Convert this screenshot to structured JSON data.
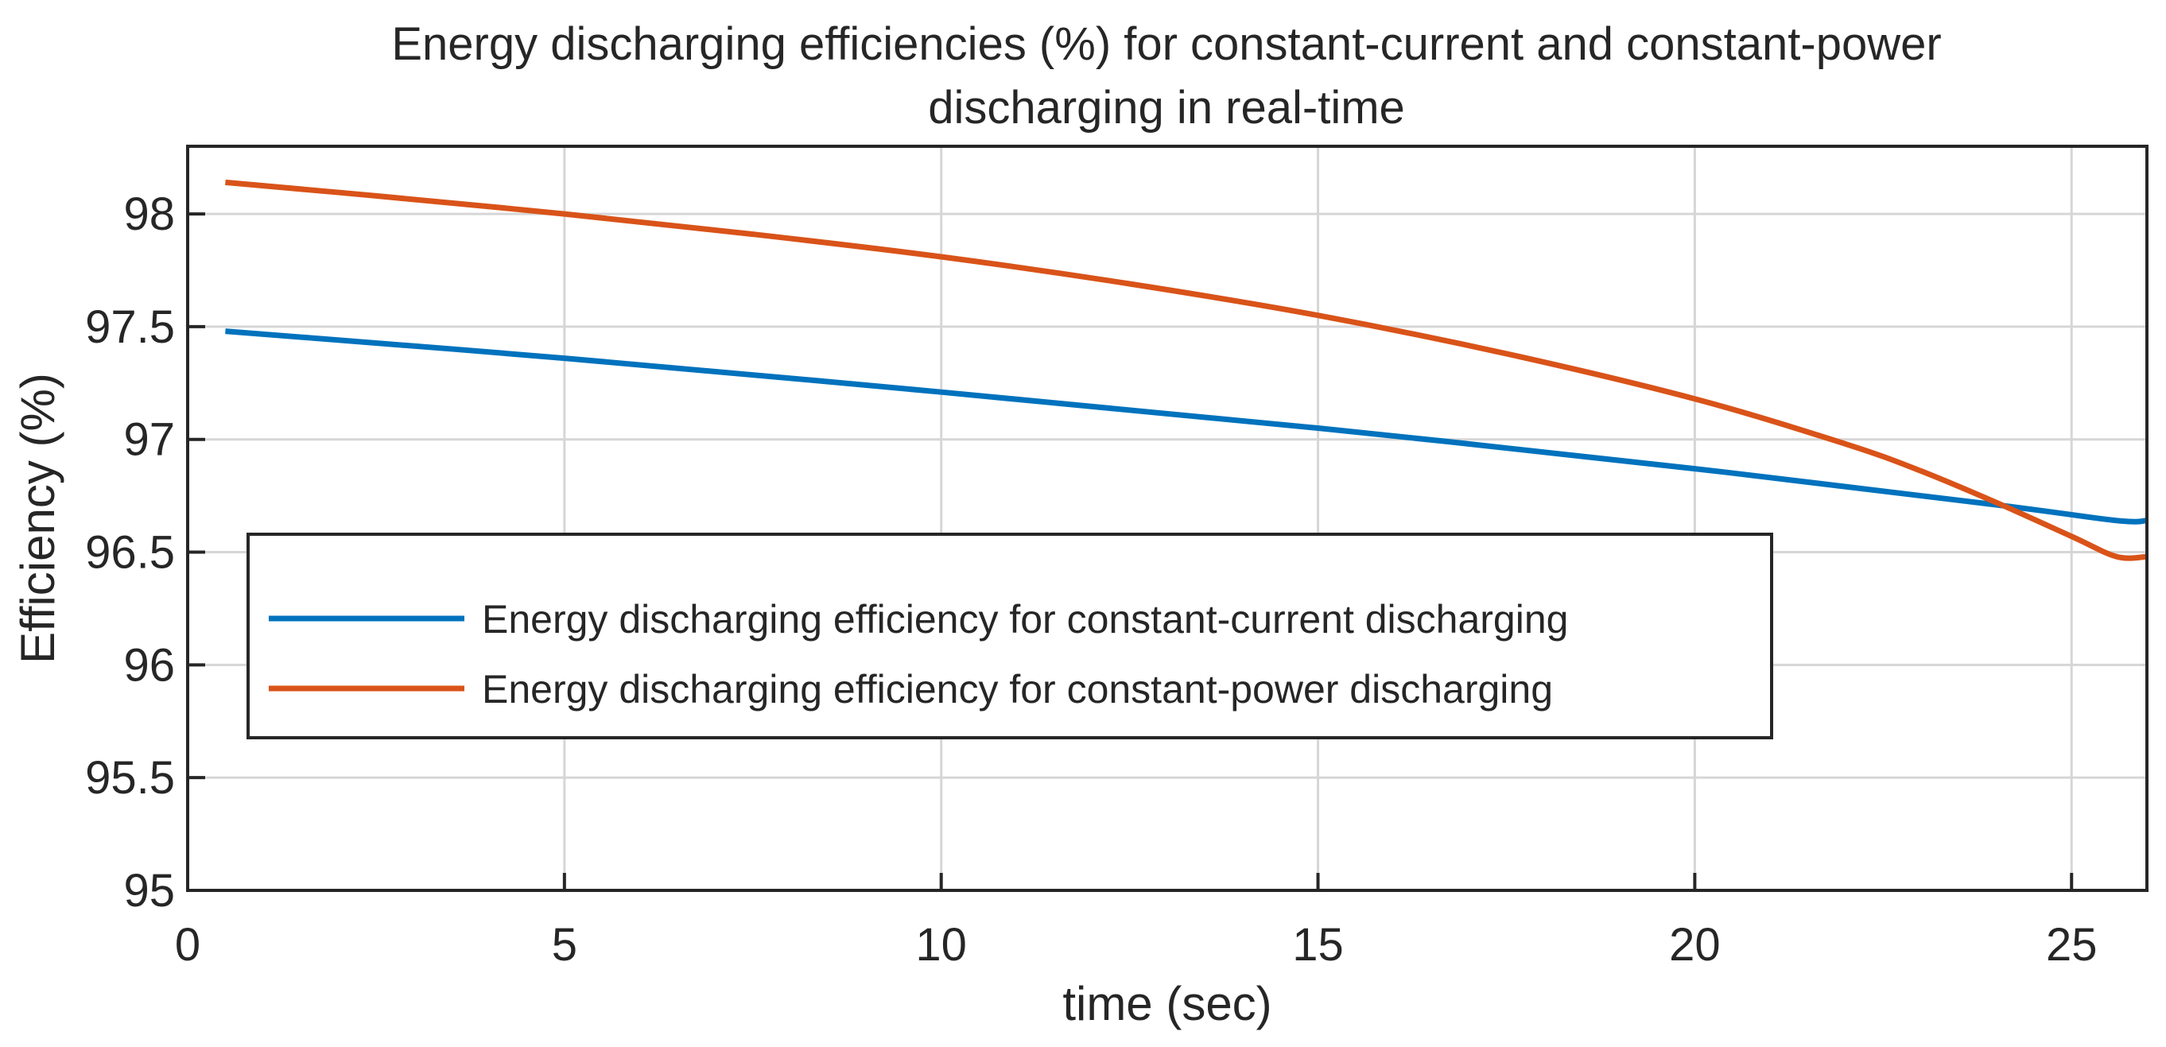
{
  "chart_data": {
    "type": "line",
    "title": [
      "Energy discharging efficiencies (%) for constant-current and constant-power",
      "discharging in real-time"
    ],
    "xlabel": "time (sec)",
    "ylabel": "Efficiency (%)",
    "xlim": [
      0,
      26
    ],
    "ylim": [
      95,
      98.3
    ],
    "xticks": [
      0,
      5,
      10,
      15,
      20,
      25
    ],
    "yticks": [
      95,
      95.5,
      96,
      96.5,
      97,
      97.5,
      98
    ],
    "xtick_labels": [
      "0",
      "5",
      "10",
      "15",
      "20",
      "25"
    ],
    "ytick_labels": [
      "95",
      "95.5",
      "96",
      "96.5",
      "97",
      "97.5",
      "98"
    ],
    "grid": true,
    "legend_position": "lower-left",
    "series": [
      {
        "name": "Energy discharging efficiency for constant-current discharging",
        "color": "#0072BD",
        "x": [
          0.5,
          5,
          10,
          15,
          20,
          24,
          25.6,
          26
        ],
        "y": [
          97.48,
          97.36,
          97.21,
          97.05,
          96.87,
          96.71,
          96.64,
          96.64
        ]
      },
      {
        "name": "Energy discharging efficiency for constant-power discharging",
        "color": "#D95319",
        "x": [
          0.5,
          2.5,
          5,
          7.5,
          10,
          12.5,
          15,
          17.5,
          20,
          22,
          23,
          24,
          25,
          25.6,
          26
        ],
        "y": [
          98.14,
          98.08,
          98.0,
          97.91,
          97.81,
          97.69,
          97.55,
          97.38,
          97.18,
          96.98,
          96.86,
          96.72,
          96.57,
          96.48,
          96.48
        ]
      }
    ]
  }
}
